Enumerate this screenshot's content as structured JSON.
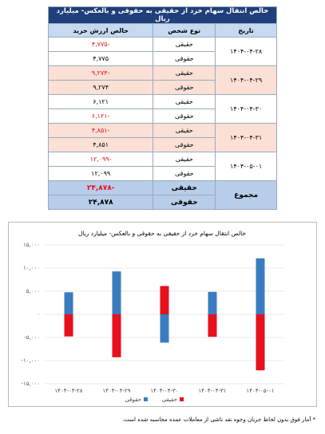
{
  "table": {
    "title": "خالص انتقال سهام خرد از حقیقی به حقوقی و بالعکس- میلیارد ریال",
    "headers": [
      "تاریخ",
      "نوع شخص",
      "خالص ارزش خرید"
    ],
    "rows": [
      {
        "date": "۱۴۰۴-۰۴-۲۸",
        "entries": [
          {
            "type": "حقیقی",
            "value": "-۴,۷۷۵"
          },
          {
            "type": "حقوقی",
            "value": "۴,۷۷۵"
          }
        ]
      },
      {
        "date": "۱۴۰۴-۰۴-۲۹",
        "entries": [
          {
            "type": "حقیقی",
            "value": "-۹,۲۷۴"
          },
          {
            "type": "حقوقی",
            "value": "۹,۲۷۴"
          }
        ]
      },
      {
        "date": "۱۴۰۴-۰۴-۳۰",
        "entries": [
          {
            "type": "حقیقی",
            "value": "۶,۱۲۱"
          },
          {
            "type": "حقوقی",
            "value": "-۶,۱۲۱"
          }
        ]
      },
      {
        "date": "۱۴۰۴-۰۴-۳۱",
        "entries": [
          {
            "type": "حقیقی",
            "value": "-۴,۸۵۱"
          },
          {
            "type": "حقوقی",
            "value": "۴,۸۵۱"
          }
        ]
      },
      {
        "date": "۱۴۰۴-۰۵-۰۱",
        "entries": [
          {
            "type": "حقیقی",
            "value": "-۱۲,۰۹۹"
          },
          {
            "type": "حقوقی",
            "value": "۱۲,۰۹۹"
          }
        ]
      }
    ],
    "total": {
      "date": "مجموع",
      "entries": [
        {
          "type": "حقیقی",
          "value": "-۲۴,۸۷۸"
        },
        {
          "type": "حقوقی",
          "value": "۲۴,۸۷۸"
        }
      ]
    }
  },
  "chart_data": {
    "type": "bar",
    "title": "خالص انتقال سهام خرد از حقیقی به حقوقی و بالعکس- میلیارد ریال",
    "categories": [
      "۱۴۰۴-۰۴-۲۸",
      "۱۴۰۴-۰۴-۲۹",
      "۱۴۰۴-۰۴-۳۰",
      "۱۴۰۴-۰۴-۳۱",
      "۱۴۰۴-۰۵-۰۱"
    ],
    "series": [
      {
        "name": "حقیقی",
        "color": "#e8101c",
        "values": [
          -4775,
          -9274,
          6121,
          -4851,
          -12099
        ]
      },
      {
        "name": "حقوقی",
        "color": "#3a7cc0",
        "values": [
          4775,
          9274,
          -6121,
          4851,
          12099
        ]
      }
    ],
    "ylim": [
      -15000,
      15000
    ],
    "yticks": [
      {
        "value": -15000,
        "label": "-۱۵,۰۰۰"
      },
      {
        "value": -10000,
        "label": "-۱۰,۰۰۰"
      },
      {
        "value": -5000,
        "label": "-۵,۰۰۰"
      },
      {
        "value": 0,
        "label": "۰"
      },
      {
        "value": 5000,
        "label": "۵,۰۰۰"
      },
      {
        "value": 10000,
        "label": "۱۰,۰۰۰"
      },
      {
        "value": 15000,
        "label": "۱۵,۰۰۰"
      }
    ],
    "grid": true,
    "legend": "bottom"
  },
  "footnote": "* آمار فوق بدون لحاظ جریان وجوه نقد ناشی از معاملات عمده محاسبه شده است."
}
